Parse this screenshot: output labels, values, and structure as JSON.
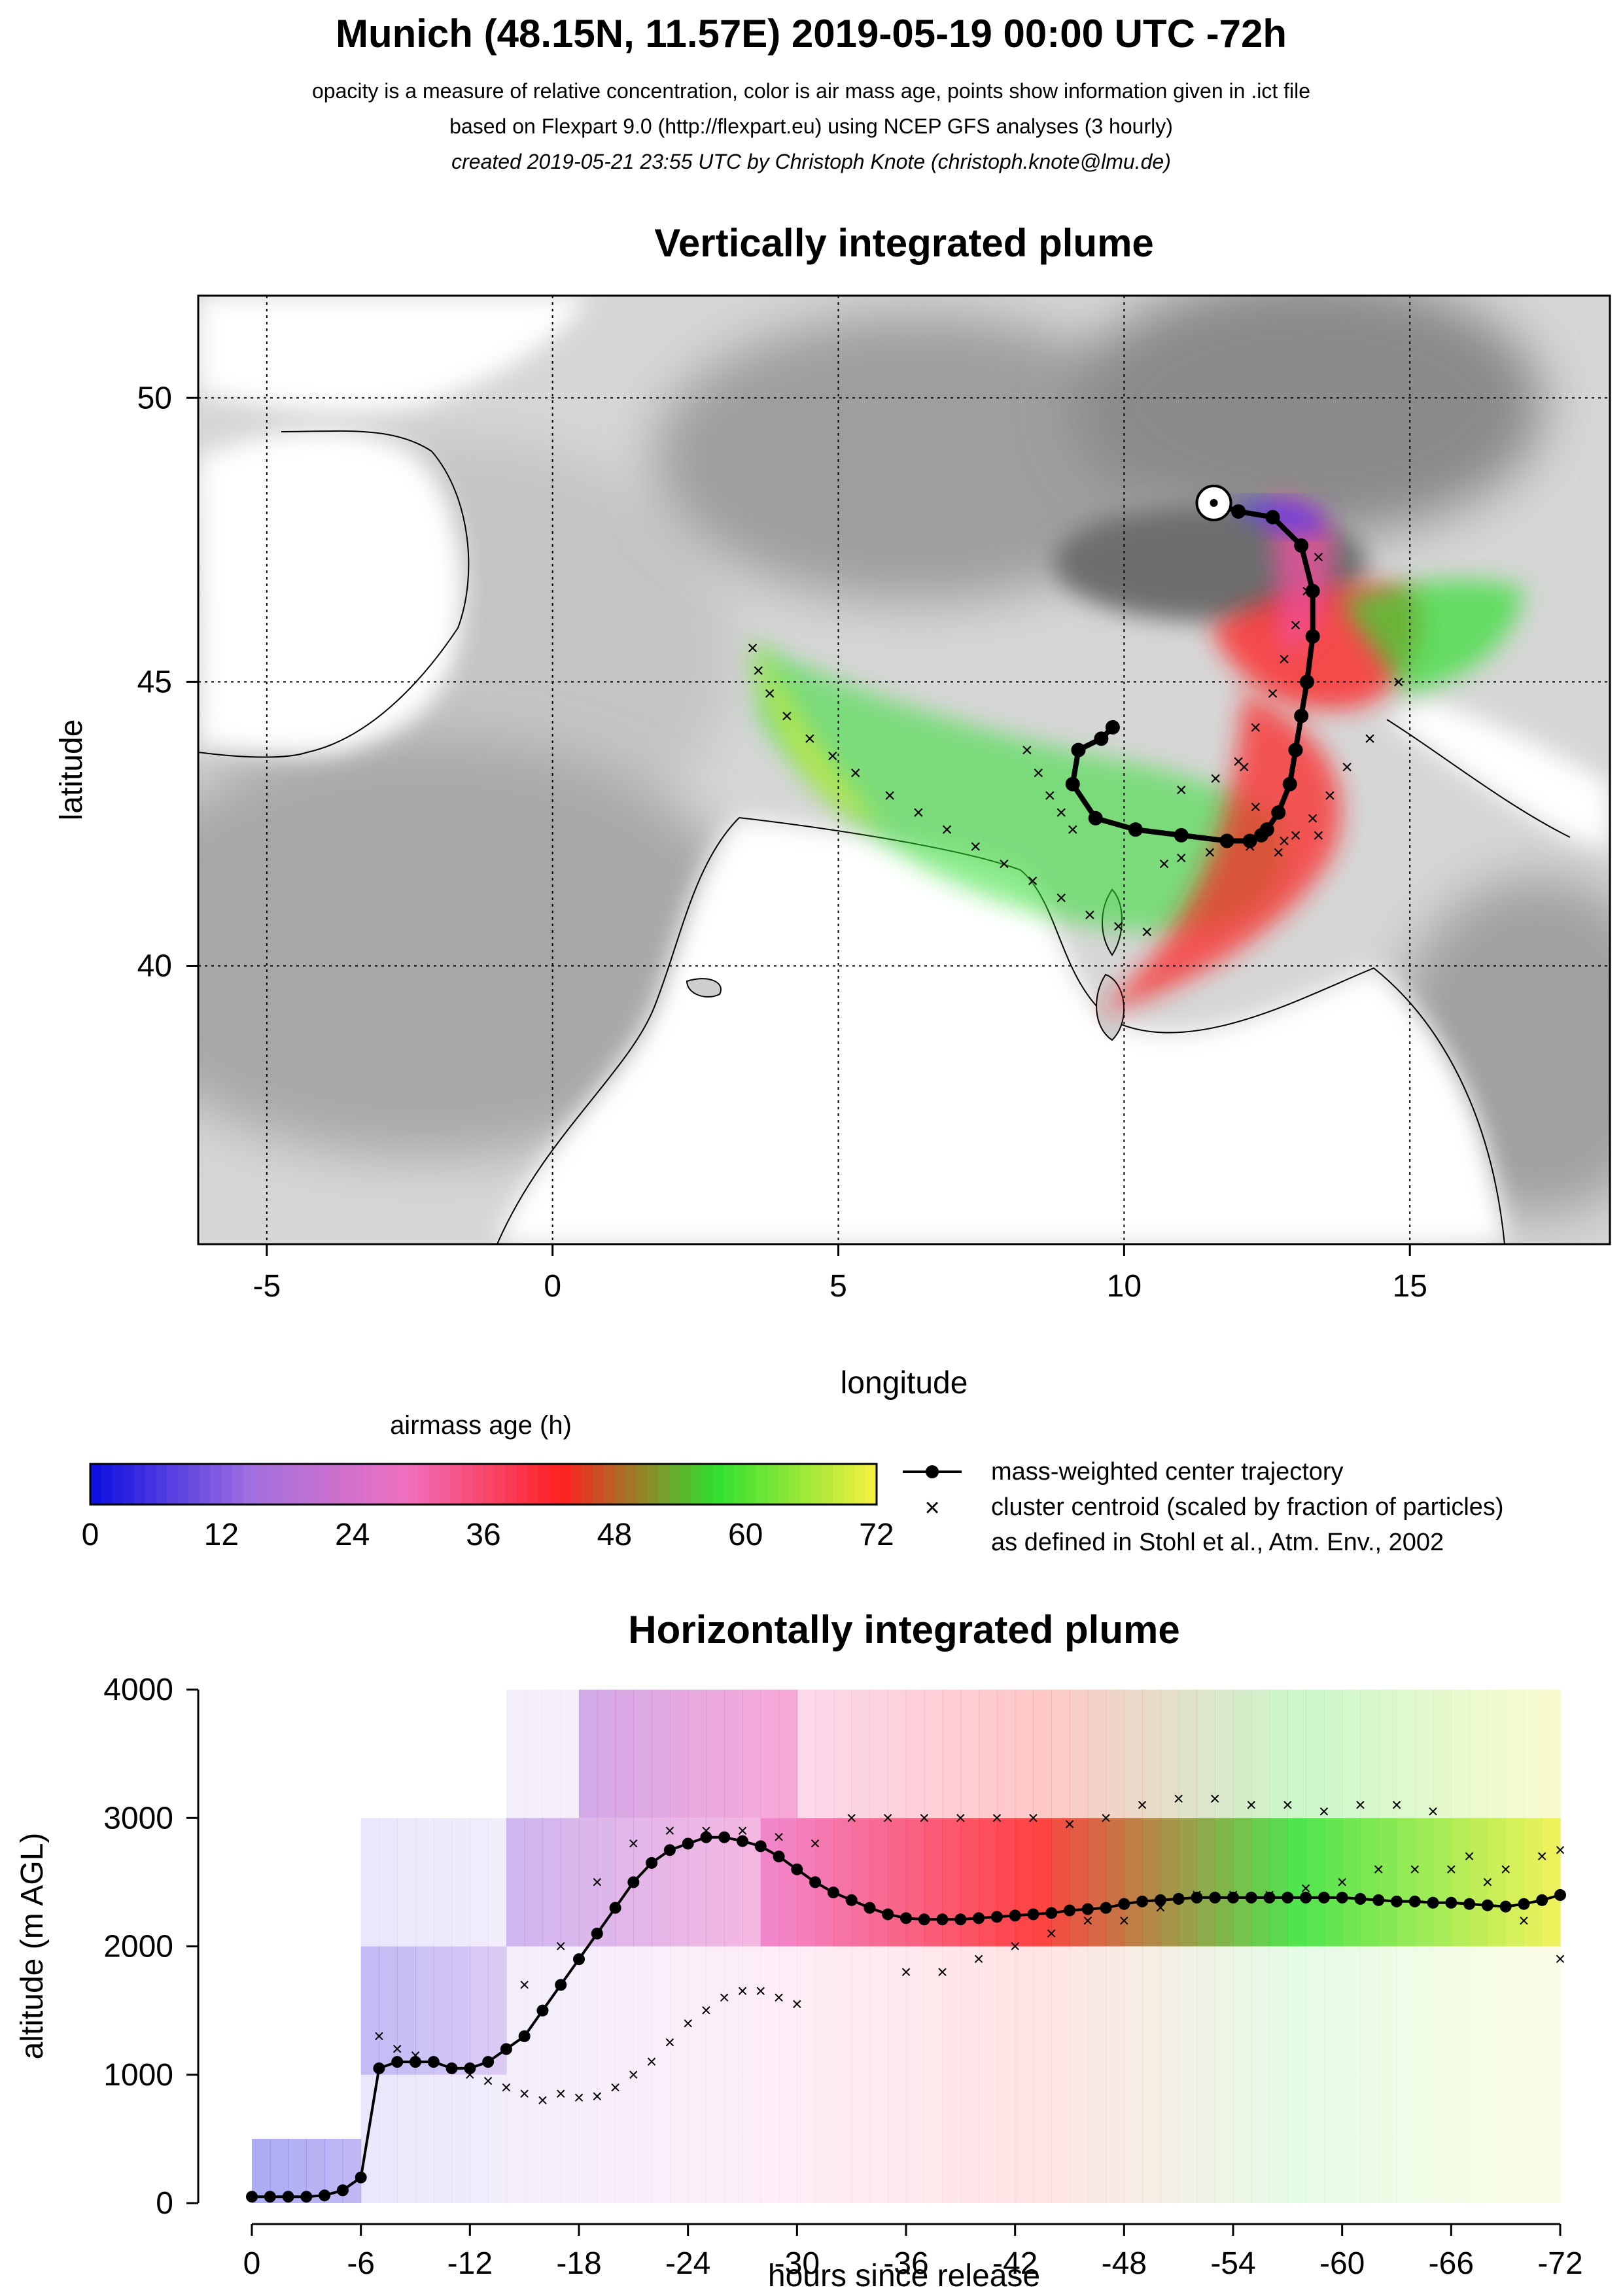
{
  "header": {
    "title": "Munich (48.15N, 11.57E) 2019-05-19 00:00 UTC -72h",
    "line1": "opacity is a measure of relative concentration, color is air mass age, points show information given in .ict file",
    "line2": "based on Flexpart 9.0 (http://flexpart.eu) using NCEP GFS analyses (3 hourly)",
    "line3": "created 2019-05-21 23:55 UTC by Christoph Knote (christoph.knote@lmu.de)"
  },
  "colors": {
    "age_scale": [
      "#1010e0",
      "#a070e0",
      "#f070c0",
      "#ff2020",
      "#30e030",
      "#f0f040"
    ]
  },
  "chart_data": [
    {
      "type": "scatter",
      "title": "Vertically integrated plume",
      "xlabel": "longitude",
      "ylabel": "latitude",
      "xlim": [
        -6.2,
        18.5
      ],
      "ylim": [
        35.1,
        51.8
      ],
      "xticks": [
        -5,
        0,
        5,
        10,
        15
      ],
      "yticks": [
        40,
        45,
        50
      ],
      "xtick_labels": [
        "-5",
        "0",
        "5",
        "10",
        "15"
      ],
      "ytick_labels": [
        "40",
        "45",
        "50"
      ],
      "grid": true,
      "release_point": {
        "lon": 11.57,
        "lat": 48.15
      },
      "series": [
        {
          "name": "mass-weighted center trajectory",
          "lon": [
            11.57,
            12.0,
            12.6,
            13.1,
            13.3,
            13.3,
            13.2,
            13.1,
            13.0,
            12.9,
            12.7,
            12.5,
            12.4,
            12.2,
            11.8,
            11.0,
            10.2,
            9.5,
            9.1,
            9.2,
            9.6,
            9.8
          ],
          "lat": [
            48.15,
            48.0,
            47.9,
            47.4,
            46.6,
            45.8,
            45.0,
            44.4,
            43.8,
            43.2,
            42.7,
            42.4,
            42.3,
            42.2,
            42.2,
            42.3,
            42.4,
            42.6,
            43.2,
            43.8,
            44.0,
            44.2
          ]
        },
        {
          "name": "cluster centroid (scaled by fraction of particles)",
          "lon": [
            3.5,
            3.6,
            3.8,
            4.1,
            4.5,
            4.9,
            5.3,
            5.9,
            6.4,
            6.9,
            7.4,
            7.9,
            8.4,
            8.9,
            9.4,
            9.9,
            10.4,
            8.3,
            8.5,
            8.7,
            8.9,
            9.1,
            11.0,
            11.6,
            12.0,
            12.3,
            12.7,
            13.0,
            13.3,
            13.6,
            13.9,
            14.3,
            14.8,
            10.7,
            11.0,
            11.5,
            12.2,
            12.8,
            13.4,
            12.1,
            12.3,
            12.6,
            12.8,
            13.0,
            13.2,
            13.4
          ],
          "lat": [
            45.6,
            45.2,
            44.8,
            44.4,
            44.0,
            43.7,
            43.4,
            43.0,
            42.7,
            42.4,
            42.1,
            41.8,
            41.5,
            41.2,
            40.9,
            40.7,
            40.6,
            43.8,
            43.4,
            43.0,
            42.7,
            42.4,
            43.1,
            43.3,
            43.6,
            42.8,
            42.0,
            42.3,
            42.6,
            43.0,
            43.5,
            44.0,
            45.0,
            41.8,
            41.9,
            42.0,
            42.1,
            42.2,
            42.3,
            43.5,
            44.2,
            44.8,
            45.4,
            46.0,
            46.6,
            47.2
          ]
        }
      ],
      "plume_age_bands": [
        {
          "age_h": 6,
          "color": "#5a3ae8"
        },
        {
          "age_h": 24,
          "color": "#f050a0"
        },
        {
          "age_h": 36,
          "color": "#ff1a1a"
        },
        {
          "age_h": 54,
          "color": "#20e020"
        },
        {
          "age_h": 68,
          "color": "#e8f020"
        }
      ]
    },
    {
      "type": "heatmap",
      "title": "airmass age (h)",
      "x": [
        0,
        12,
        24,
        36,
        48,
        60,
        72
      ],
      "tick_labels": [
        "0",
        "12",
        "24",
        "36",
        "48",
        "60",
        "72"
      ],
      "range": [
        0,
        72
      ]
    },
    {
      "type": "line",
      "title": "Horizontally integrated plume",
      "xlabel": "hours since release",
      "ylabel": "altitude (m AGL)",
      "xlim": [
        0,
        -72
      ],
      "ylim": [
        0,
        4000
      ],
      "xticks": [
        0,
        -6,
        -12,
        -18,
        -24,
        -30,
        -36,
        -42,
        -48,
        -54,
        -60,
        -66,
        -72
      ],
      "xtick_labels": [
        "0",
        "-6",
        "-12",
        "-18",
        "-24",
        "-30",
        "-36",
        "-42",
        "-48",
        "-54",
        "-60",
        "-66",
        "-72"
      ],
      "yticks": [
        0,
        1000,
        2000,
        3000,
        4000
      ],
      "ytick_labels": [
        "0",
        "1000",
        "2000",
        "3000",
        "4000"
      ],
      "series": [
        {
          "name": "mass-weighted center trajectory",
          "x": [
            0,
            -1,
            -2,
            -3,
            -4,
            -5,
            -6,
            -7,
            -8,
            -9,
            -10,
            -11,
            -12,
            -13,
            -14,
            -15,
            -16,
            -17,
            -18,
            -19,
            -20,
            -21,
            -22,
            -23,
            -24,
            -25,
            -26,
            -27,
            -28,
            -29,
            -30,
            -31,
            -32,
            -33,
            -34,
            -35,
            -36,
            -37,
            -38,
            -39,
            -40,
            -41,
            -42,
            -43,
            -44,
            -45,
            -46,
            -47,
            -48,
            -49,
            -50,
            -51,
            -52,
            -53,
            -54,
            -55,
            -56,
            -57,
            -58,
            -59,
            -60,
            -61,
            -62,
            -63,
            -64,
            -65,
            -66,
            -67,
            -68,
            -69,
            -70,
            -71,
            -72
          ],
          "y": [
            50,
            50,
            50,
            50,
            60,
            100,
            200,
            1050,
            1100,
            1100,
            1100,
            1050,
            1050,
            1100,
            1200,
            1300,
            1500,
            1700,
            1900,
            2100,
            2300,
            2500,
            2650,
            2750,
            2800,
            2850,
            2850,
            2820,
            2780,
            2700,
            2600,
            2500,
            2420,
            2360,
            2300,
            2250,
            2220,
            2210,
            2210,
            2210,
            2220,
            2230,
            2240,
            2250,
            2260,
            2280,
            2290,
            2300,
            2330,
            2350,
            2360,
            2370,
            2380,
            2380,
            2380,
            2380,
            2380,
            2380,
            2380,
            2380,
            2380,
            2370,
            2360,
            2350,
            2350,
            2340,
            2340,
            2330,
            2320,
            2310,
            2330,
            2360,
            2400
          ]
        },
        {
          "name": "cluster centroid (scaled by fraction of particles)",
          "x": [
            -7,
            -8,
            -9,
            -10,
            -11,
            -12,
            -13,
            -14,
            -15,
            -16,
            -17,
            -18,
            -19,
            -20,
            -21,
            -22,
            -23,
            -24,
            -25,
            -26,
            -27,
            -28,
            -29,
            -30,
            -15,
            -17,
            -19,
            -21,
            -23,
            -25,
            -27,
            -29,
            -31,
            -33,
            -35,
            -37,
            -39,
            -41,
            -43,
            -45,
            -47,
            -49,
            -51,
            -53,
            -55,
            -57,
            -59,
            -61,
            -63,
            -65,
            -67,
            -69,
            -71,
            -72,
            -36,
            -38,
            -40,
            -42,
            -44,
            -46,
            -48,
            -50,
            -52,
            -54,
            -56,
            -58,
            -60,
            -62,
            -64,
            -66,
            -68,
            -70,
            -72
          ],
          "y": [
            1300,
            1200,
            1150,
            1100,
            1050,
            1000,
            950,
            900,
            850,
            800,
            850,
            820,
            830,
            900,
            1000,
            1100,
            1250,
            1400,
            1500,
            1600,
            1650,
            1650,
            1600,
            1550,
            1700,
            2000,
            2500,
            2800,
            2900,
            2900,
            2900,
            2850,
            2800,
            3000,
            3000,
            3000,
            3000,
            3000,
            3000,
            2950,
            3000,
            3100,
            3150,
            3150,
            3100,
            3100,
            3050,
            3100,
            3100,
            3050,
            2700,
            2600,
            2700,
            2750,
            1800,
            1800,
            1900,
            2000,
            2100,
            2200,
            2200,
            2300,
            2400,
            2400,
            2400,
            2450,
            2500,
            2600,
            2600,
            2600,
            2500,
            2200,
            1900
          ]
        }
      ]
    }
  ],
  "legend": {
    "item1": "mass-weighted center trajectory",
    "item2": "cluster centroid (scaled by fraction of particles)",
    "item3": "as defined in Stohl et al., Atm. Env., 2002"
  }
}
